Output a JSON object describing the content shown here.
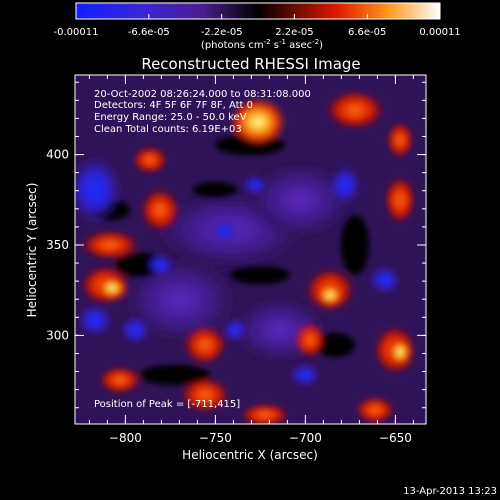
{
  "title": "Reconstructed RHESSI Image",
  "timestamp": "13-Apr-2013 13:23",
  "colorbar": {
    "tick_labels": [
      "-0.00011",
      "-6.6e-05",
      "-2.2e-05",
      "2.2e-05",
      "6.6e-05",
      "0.00011"
    ],
    "unit_prefix": "(photons cm",
    "exp_cm": "-2",
    "unit_s": " s",
    "exp_s": "-1",
    "unit_asec": " asec",
    "exp_asec": "-2",
    "unit_close": ")",
    "colors": [
      "#1020ff",
      "#4a1e8c",
      "#000000",
      "#e21a00",
      "#ff9a1a",
      "#ffffff"
    ]
  },
  "overlay": {
    "time_range": "20-Oct-2002 08:26:24.000 to 08:31:08.000",
    "detectors": "Detectors: 4F 5F 6F 7F 8F, Att 0",
    "energy_range": "Energy Range: 25.0 - 50.0 keV",
    "clean_counts": "Clean    Total counts: 6.19E+03",
    "peak_position": "Position of Peak = [-711,415]"
  },
  "axes": {
    "xlabel": "Heliocentric X (arcsec)",
    "ylabel": "Heliocentric Y (arcsec)",
    "xlim": [
      -828,
      -633
    ],
    "ylim": [
      251,
      444
    ],
    "xticks": [
      -800,
      -750,
      -700,
      -650
    ],
    "yticks": [
      300,
      350,
      400
    ],
    "xtick_labels": [
      "−800",
      "−750",
      "−700",
      "−650"
    ],
    "ytick_labels": [
      "300",
      "350",
      "400"
    ],
    "x_minor_step": 10,
    "y_minor_step": 10
  }
}
